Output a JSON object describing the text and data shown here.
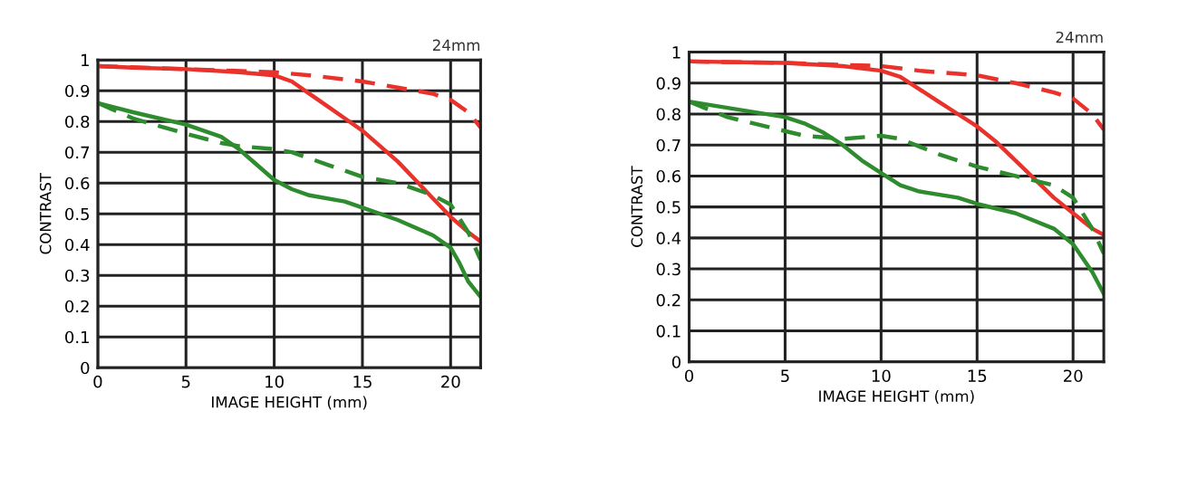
{
  "chart_data": [
    {
      "type": "line",
      "xlabel": "IMAGE HEIGHT (mm)",
      "ylabel": "CONTRAST",
      "annotations": [
        "24mm"
      ],
      "xlim": [
        0,
        21.7
      ],
      "ylim": [
        0,
        1
      ],
      "xticks": [
        0,
        5,
        10,
        15,
        20
      ],
      "yticks": [
        0,
        0.1,
        0.2,
        0.3,
        0.4,
        0.5,
        0.6,
        0.7,
        0.8,
        0.9,
        1
      ],
      "grid": true,
      "series": [
        {
          "color": "#e8322b",
          "line_style": "solid",
          "x": [
            0,
            2,
            5,
            8,
            10,
            11,
            12,
            13,
            14,
            15,
            16,
            17,
            18,
            19,
            20,
            21,
            21.7
          ],
          "values": [
            0.98,
            0.975,
            0.97,
            0.96,
            0.95,
            0.93,
            0.89,
            0.85,
            0.81,
            0.77,
            0.72,
            0.67,
            0.61,
            0.55,
            0.49,
            0.44,
            0.41
          ]
        },
        {
          "color": "#e8322b",
          "line_style": "dashed",
          "x": [
            0,
            5,
            10,
            12,
            15,
            17,
            19,
            20,
            21,
            21.7
          ],
          "values": [
            0.98,
            0.97,
            0.96,
            0.95,
            0.93,
            0.91,
            0.89,
            0.87,
            0.83,
            0.78
          ]
        },
        {
          "color": "#2e8b2e",
          "line_style": "solid",
          "x": [
            0,
            2,
            5,
            7,
            8,
            9,
            10,
            11,
            12,
            14,
            15,
            17,
            19,
            20,
            20.5,
            21,
            21.7
          ],
          "values": [
            0.86,
            0.83,
            0.79,
            0.75,
            0.71,
            0.66,
            0.61,
            0.58,
            0.56,
            0.54,
            0.52,
            0.48,
            0.43,
            0.39,
            0.34,
            0.28,
            0.23
          ]
        },
        {
          "color": "#2e8b2e",
          "line_style": "dashed",
          "x": [
            0,
            2,
            5,
            7,
            8,
            10,
            11,
            13,
            15,
            17,
            19,
            20,
            21,
            21.7
          ],
          "values": [
            0.86,
            0.81,
            0.76,
            0.73,
            0.72,
            0.71,
            0.7,
            0.66,
            0.62,
            0.6,
            0.56,
            0.53,
            0.44,
            0.35
          ]
        }
      ]
    },
    {
      "type": "line",
      "xlabel": "IMAGE HEIGHT (mm)",
      "ylabel": "CONTRAST",
      "annotations": [
        "24mm"
      ],
      "xlim": [
        0,
        21.6
      ],
      "ylim": [
        0,
        1
      ],
      "xticks": [
        0,
        5,
        10,
        15,
        20
      ],
      "yticks": [
        0,
        0.1,
        0.2,
        0.3,
        0.4,
        0.5,
        0.6,
        0.7,
        0.8,
        0.9,
        1
      ],
      "grid": true,
      "series": [
        {
          "color": "#e8322b",
          "line_style": "solid",
          "x": [
            0,
            5,
            8,
            10,
            11,
            12,
            13,
            14,
            15,
            16,
            17,
            18,
            19,
            20,
            21,
            21.6
          ],
          "values": [
            0.97,
            0.965,
            0.955,
            0.94,
            0.92,
            0.88,
            0.84,
            0.8,
            0.76,
            0.71,
            0.65,
            0.59,
            0.53,
            0.48,
            0.43,
            0.41
          ]
        },
        {
          "color": "#e8322b",
          "line_style": "dashed",
          "x": [
            0,
            5,
            10,
            12,
            15,
            17,
            19,
            20,
            21,
            21.6
          ],
          "values": [
            0.97,
            0.965,
            0.955,
            0.94,
            0.925,
            0.9,
            0.87,
            0.85,
            0.8,
            0.75
          ]
        },
        {
          "color": "#2e8b2e",
          "line_style": "solid",
          "x": [
            0,
            2,
            5,
            6,
            7,
            8,
            9,
            10,
            11,
            12,
            14,
            15,
            17,
            19,
            20,
            21,
            21.6
          ],
          "values": [
            0.84,
            0.82,
            0.79,
            0.77,
            0.74,
            0.7,
            0.65,
            0.61,
            0.57,
            0.55,
            0.53,
            0.51,
            0.48,
            0.43,
            0.38,
            0.29,
            0.22
          ]
        },
        {
          "color": "#2e8b2e",
          "line_style": "dashed",
          "x": [
            0,
            2,
            4,
            6,
            8,
            10,
            11,
            13,
            15,
            17,
            19,
            20,
            21,
            21.6
          ],
          "values": [
            0.84,
            0.79,
            0.76,
            0.73,
            0.72,
            0.73,
            0.72,
            0.67,
            0.63,
            0.6,
            0.57,
            0.53,
            0.43,
            0.35
          ]
        }
      ]
    }
  ]
}
